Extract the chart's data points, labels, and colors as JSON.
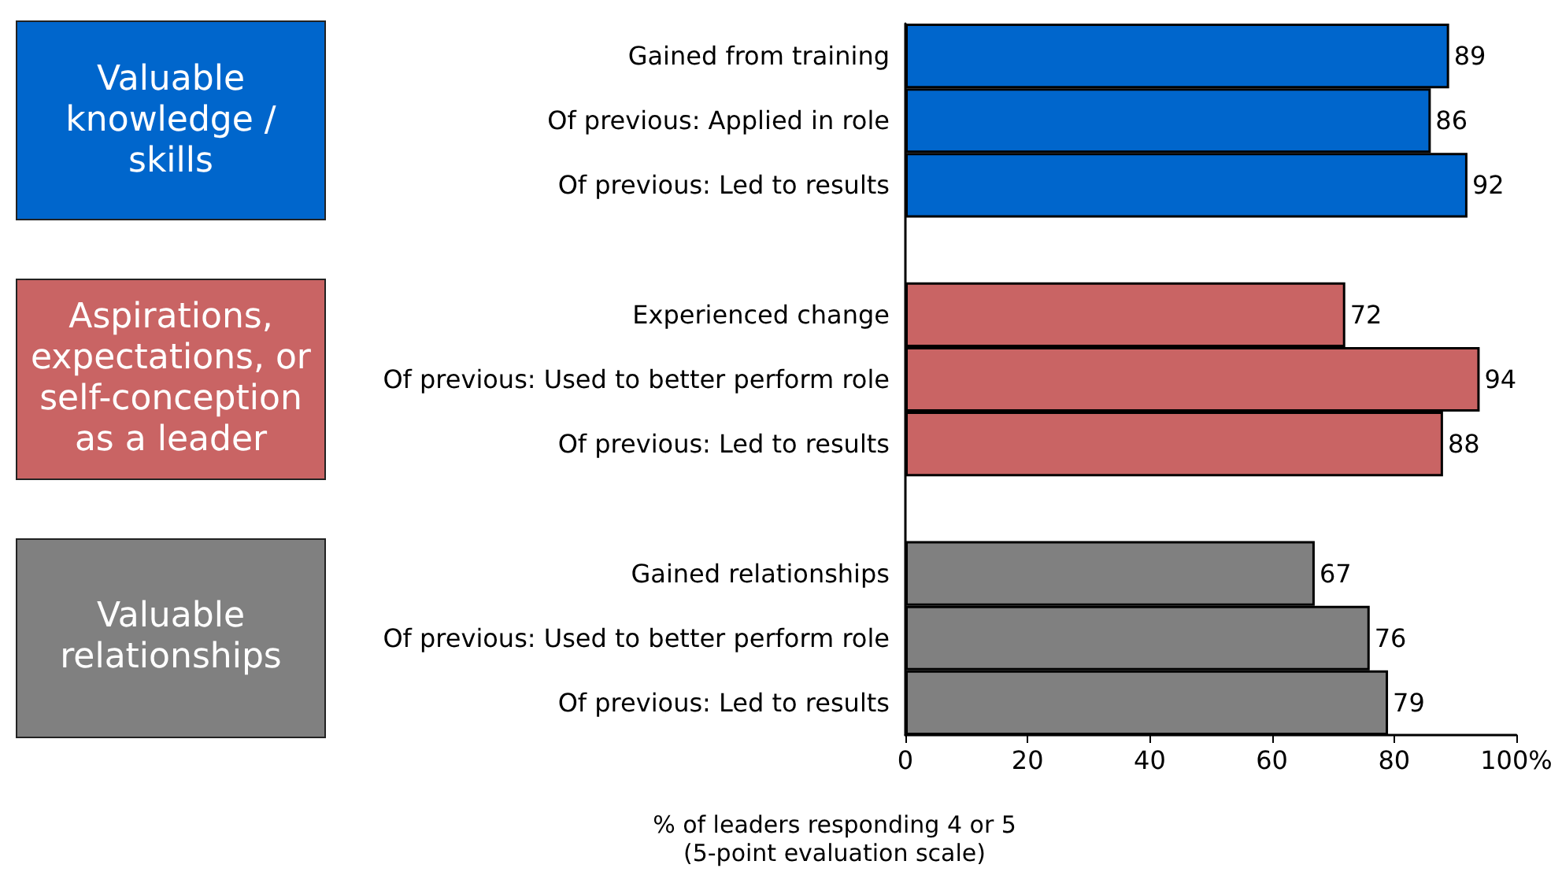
{
  "chart_data": {
    "type": "bar",
    "orientation": "horizontal",
    "categories": [
      "Gained from training",
      "Of previous: Applied in role",
      "Of previous: Led to results",
      null,
      "Experienced change",
      "Of previous: Used to better perform role",
      "Of previous: Led to results",
      null,
      "Gained relationships",
      "Of previous: Used to better perform role",
      "Of previous: Led to results"
    ],
    "values": [
      89,
      86,
      92,
      null,
      72,
      94,
      88,
      null,
      67,
      76,
      79
    ],
    "colors": [
      "#0066cc",
      "#0066cc",
      "#0066cc",
      "#ffffff",
      "#c96464",
      "#c96464",
      "#c96464",
      "#ffffff",
      "#808080",
      "#808080",
      "#808080"
    ],
    "xlim": [
      0,
      100
    ],
    "xticks": [
      0,
      20,
      40,
      60,
      80,
      {
        "value": 100,
        "label": "100%"
      }
    ],
    "xlabel": "% of leaders responding 4 or 5\n(5-point evaluation scale)",
    "annotations": [
      "Valuable knowledge / skills",
      "Aspirations, expectations, or self-conception as a leader",
      "Valuable relationships"
    ],
    "data_labels": true
  }
}
